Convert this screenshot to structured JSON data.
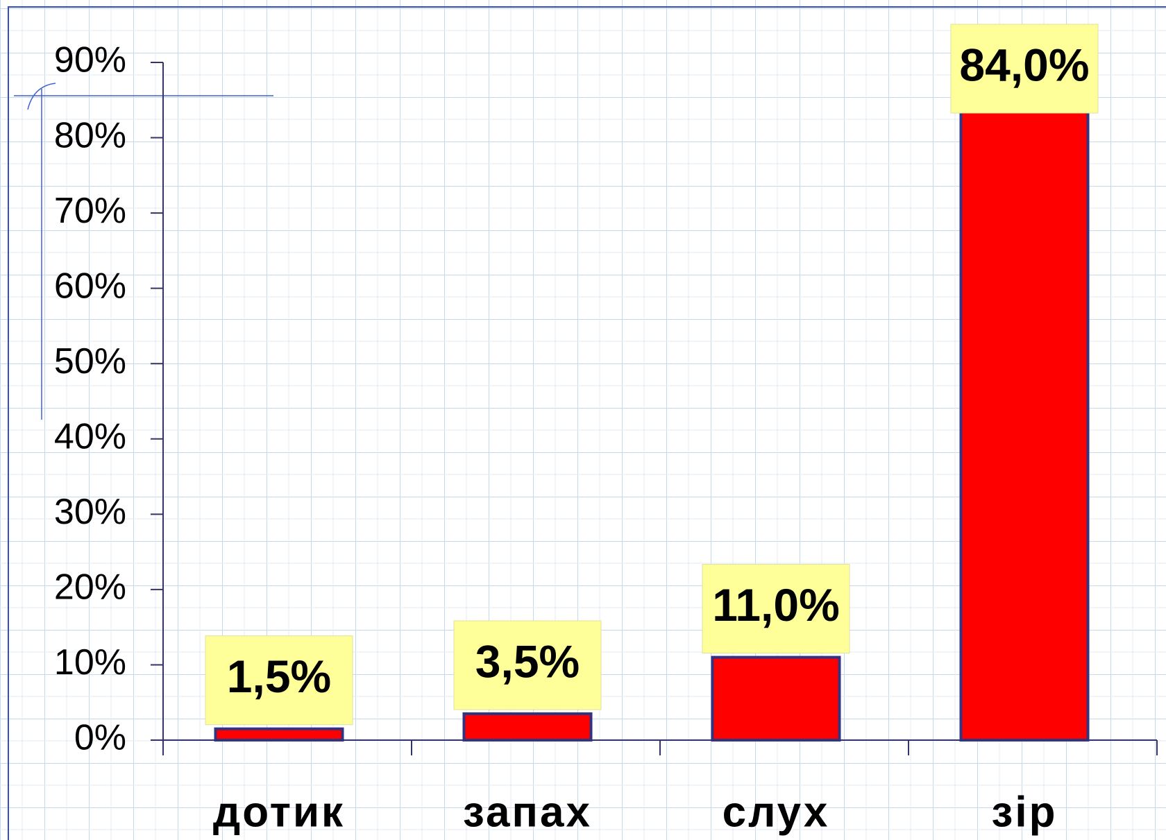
{
  "chart_data": {
    "type": "bar",
    "categories": [
      "дотик",
      "запах",
      "слух",
      "зір"
    ],
    "values": [
      1.5,
      3.5,
      11,
      84
    ],
    "value_labels": [
      "1,5%",
      "3,5%",
      "11,0%",
      "84,0%"
    ],
    "color": "#ff0000",
    "ylim": [
      0,
      90
    ],
    "yticks": [
      {
        "value": 0,
        "label": "0%"
      },
      {
        "value": 10,
        "label": "10%"
      },
      {
        "value": 20,
        "label": "20%"
      },
      {
        "value": 30,
        "label": "30%"
      },
      {
        "value": 40,
        "label": "40%"
      },
      {
        "value": 50,
        "label": "50%"
      },
      {
        "value": 60,
        "label": "60%"
      },
      {
        "value": 70,
        "label": "70%"
      },
      {
        "value": 80,
        "label": "80%"
      },
      {
        "value": 90,
        "label": "90%"
      }
    ]
  }
}
